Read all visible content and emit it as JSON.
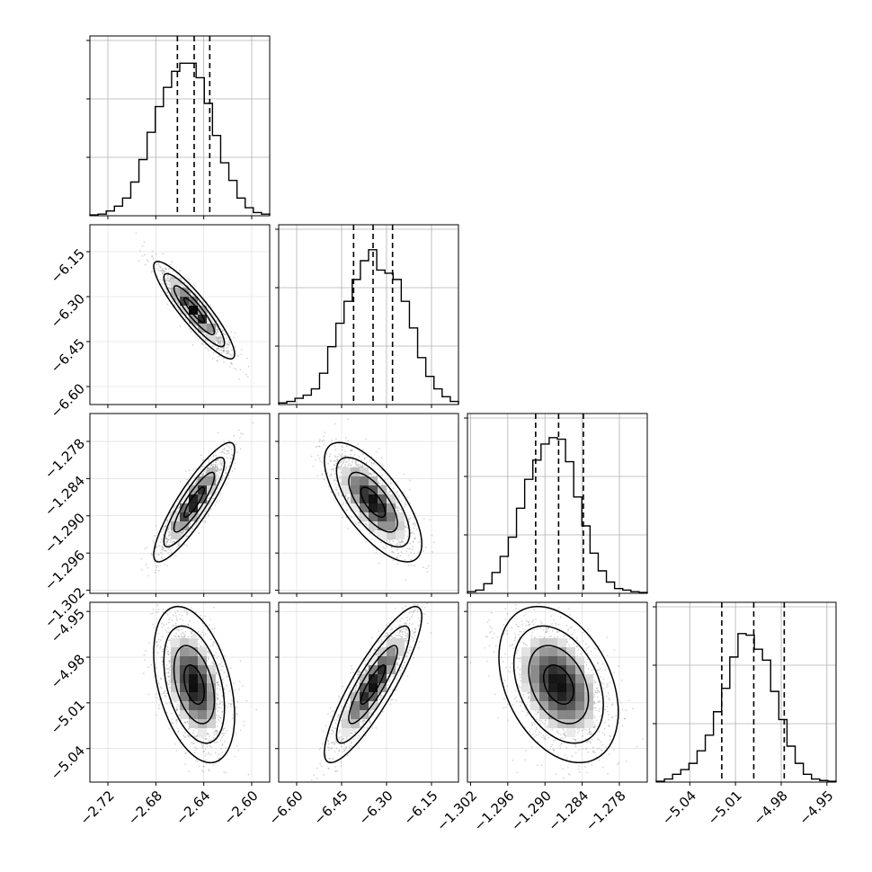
{
  "chart_data": {
    "type": "corner",
    "parameters": [
      {
        "ticks": [
          -2.72,
          -2.68,
          -2.64,
          -2.6
        ],
        "tick_labels": [
          "−2.72",
          "−2.68",
          "−2.64",
          "−2.60"
        ],
        "range": [
          -2.735,
          -2.585
        ],
        "quantiles": [
          -2.662,
          -2.648,
          -2.635
        ],
        "hist": [
          0.005,
          0.01,
          0.03,
          0.06,
          0.11,
          0.21,
          0.35,
          0.52,
          0.68,
          0.8,
          0.9,
          0.95,
          0.95,
          0.86,
          0.7,
          0.5,
          0.33,
          0.22,
          0.11,
          0.05,
          0.02,
          0.01
        ],
        "hist_max": 1.12
      },
      {
        "ticks": [
          -6.6,
          -6.45,
          -6.3,
          -6.15
        ],
        "tick_labels": [
          "−6.60",
          "−6.45",
          "−6.30",
          "−6.15"
        ],
        "range": [
          -6.66,
          -6.06
        ],
        "quantiles": [
          -6.41,
          -6.345,
          -6.28
        ],
        "hist": [
          0.01,
          0.02,
          0.04,
          0.06,
          0.1,
          0.2,
          0.37,
          0.52,
          0.66,
          0.8,
          0.92,
          0.99,
          0.86,
          0.84,
          0.8,
          0.66,
          0.49,
          0.3,
          0.18,
          0.1,
          0.05,
          0.02
        ],
        "hist_max": 1.15
      },
      {
        "ticks": [
          -1.302,
          -1.296,
          -1.29,
          -1.284,
          -1.278
        ],
        "tick_labels": [
          "−1.302",
          "−1.296",
          "−1.290",
          "−1.284",
          "−1.278"
        ],
        "range": [
          -1.3025,
          -1.2735
        ],
        "quantiles": [
          -1.2915,
          -1.2878,
          -1.2838
        ],
        "hist": [
          0.01,
          0.02,
          0.06,
          0.13,
          0.23,
          0.35,
          0.53,
          0.71,
          0.83,
          0.93,
          0.97,
          0.96,
          0.82,
          0.6,
          0.42,
          0.25,
          0.14,
          0.07,
          0.03,
          0.02,
          0.01,
          0.005
        ],
        "hist_max": 1.12
      },
      {
        "ticks": [
          -5.04,
          -5.01,
          -4.98,
          -4.95
        ],
        "tick_labels": [
          "−5.04",
          "−5.01",
          "−4.98",
          "−4.95"
        ],
        "range": [
          -5.062,
          -4.944
        ],
        "quantiles": [
          -5.019,
          -4.998,
          -4.978
        ],
        "hist": [
          0.005,
          0.02,
          0.05,
          0.08,
          0.12,
          0.2,
          0.3,
          0.45,
          0.6,
          0.8,
          0.95,
          0.94,
          0.85,
          0.78,
          0.58,
          0.4,
          0.23,
          0.12,
          0.05,
          0.02,
          0.01,
          0.005
        ],
        "hist_max": 1.15
      }
    ],
    "correlations": [
      [
        1,
        -0.9,
        0.88,
        -0.4
      ],
      [
        -0.9,
        1,
        -0.7,
        0.87
      ],
      [
        0.88,
        -0.7,
        1,
        -0.35
      ],
      [
        -0.4,
        0.87,
        -0.35,
        1
      ]
    ],
    "grid": true,
    "colors": {
      "line": "#000000",
      "grid": "#b0b0b0",
      "samples": "#888888"
    }
  }
}
